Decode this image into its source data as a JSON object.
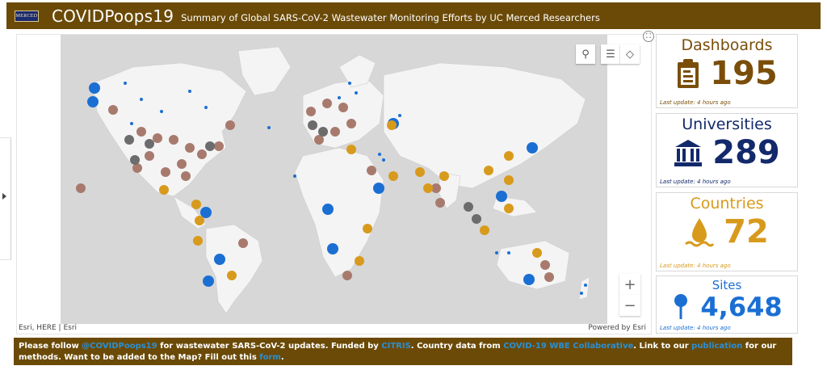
{
  "header": {
    "logo_text": "MERCED",
    "title": "COVIDPoops19",
    "subtitle": "Summary of Global SARS-CoV-2 Wastewater Monitoring Efforts by UC Merced Researchers"
  },
  "map": {
    "attribution": "Esri, HERE | Esri",
    "powered_by": "Powered by Esri",
    "tools": [
      "search-icon",
      "legend-icon",
      "layers-icon"
    ],
    "zoom_in": "+",
    "zoom_out": "−",
    "fullscreen": "⛶"
  },
  "colors": {
    "brown": "#6b4a07",
    "dashboards": "#7a4e0a",
    "universities": "#12296b",
    "countries": "#d89a1c",
    "sites": "#1b6fd3",
    "link": "#2a8fd4"
  },
  "cards": [
    {
      "title": "Dashboards",
      "value": "195",
      "update": "Last update: 4 hours ago",
      "icon": "clipboard-icon"
    },
    {
      "title": "Universities",
      "value": "289",
      "update": "Last update: 4 hours ago",
      "icon": "university-icon"
    },
    {
      "title": "Countries",
      "value": "72",
      "update": "Last update: 4 hours ago",
      "icon": "water-drop-icon"
    },
    {
      "title": "Sites",
      "value": "4,648",
      "update": "Last update: 4 hours ago",
      "icon": "pin-icon"
    }
  ],
  "footer": {
    "t1": "Please follow ",
    "l1": "@COVIDPoops19",
    "t2": " for wastewater SARS-CoV-2 updates. Funded by ",
    "l2": "CITRIS",
    "t3": ". Country data from ",
    "l3": "COVID-19 WBE Collaborative",
    "t4": ". Link to our ",
    "l4": "publication",
    "t5": " for our methods. Want to be added to the Map? Fill out this ",
    "l5": "form",
    "t6": "."
  }
}
